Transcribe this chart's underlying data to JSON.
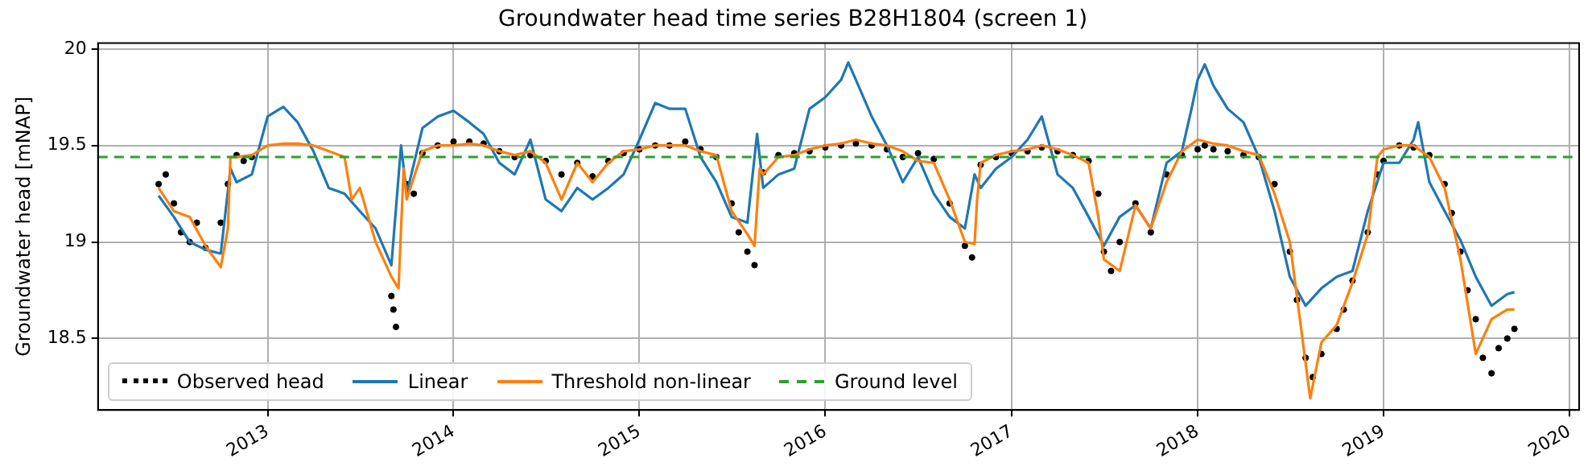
{
  "chart_data": {
    "type": "line",
    "title": "Groundwater head time series B28H1804 (screen 1)",
    "ylabel": "Groundwater head [mNAP]",
    "xlim": [
      "2012-02-03",
      "2020-01-20"
    ],
    "xticks": [
      "2013",
      "2014",
      "2015",
      "2016",
      "2017",
      "2018",
      "2019",
      "2020"
    ],
    "ylim": [
      18.13,
      20.03
    ],
    "yticks": [
      18.5,
      19.0,
      19.5,
      20.0
    ],
    "grid": true,
    "legend": "bottom left",
    "ref_lines": [
      {
        "axis": "y",
        "value": 19.44,
        "label": "Ground level",
        "color": "#2ca02c",
        "line_style": "dashed"
      }
    ],
    "series": [
      {
        "name": "Observed head",
        "type": "scatter",
        "marker": "circle",
        "color": "#000000",
        "x": [
          "2012-06-01",
          "2012-06-15",
          "2012-07-01",
          "2012-07-15",
          "2012-08-01",
          "2012-08-15",
          "2012-09-01",
          "2012-10-01",
          "2012-10-15",
          "2012-11-01",
          "2012-11-15",
          "2012-12-01",
          "2013-09-01",
          "2013-09-05",
          "2013-09-10",
          "2013-10-01",
          "2013-10-15",
          "2013-11-01",
          "2013-12-01",
          "2014-01-01",
          "2014-02-01",
          "2014-03-01",
          "2014-04-01",
          "2014-05-01",
          "2014-06-01",
          "2014-07-01",
          "2014-08-01",
          "2014-09-01",
          "2014-10-01",
          "2014-11-01",
          "2014-12-01",
          "2015-01-01",
          "2015-02-01",
          "2015-03-01",
          "2015-04-01",
          "2015-05-01",
          "2015-06-01",
          "2015-07-01",
          "2015-07-15",
          "2015-08-01",
          "2015-08-15",
          "2015-09-01",
          "2015-10-01",
          "2015-11-01",
          "2015-12-01",
          "2016-01-01",
          "2016-02-01",
          "2016-03-01",
          "2016-04-01",
          "2016-05-01",
          "2016-06-01",
          "2016-07-01",
          "2016-08-01",
          "2016-09-01",
          "2016-10-01",
          "2016-10-15",
          "2016-11-01",
          "2016-12-01",
          "2017-01-01",
          "2017-02-01",
          "2017-03-01",
          "2017-04-01",
          "2017-05-01",
          "2017-06-01",
          "2017-06-20",
          "2017-07-01",
          "2017-07-15",
          "2017-08-01",
          "2017-09-01",
          "2017-10-01",
          "2017-11-01",
          "2017-12-01",
          "2018-01-01",
          "2018-01-15",
          "2018-02-01",
          "2018-03-01",
          "2018-04-01",
          "2018-05-01",
          "2018-06-01",
          "2018-07-01",
          "2018-07-15",
          "2018-08-01",
          "2018-08-15",
          "2018-09-01",
          "2018-10-01",
          "2018-10-15",
          "2018-11-01",
          "2018-12-01",
          "2018-12-20",
          "2019-01-01",
          "2019-02-01",
          "2019-03-01",
          "2019-04-01",
          "2019-05-01",
          "2019-05-15",
          "2019-06-01",
          "2019-06-15",
          "2019-07-01",
          "2019-07-15",
          "2019-08-01",
          "2019-08-15",
          "2019-09-01",
          "2019-09-15"
        ],
        "values": [
          19.3,
          19.35,
          19.2,
          19.05,
          19.0,
          19.1,
          18.97,
          19.1,
          19.3,
          19.45,
          19.42,
          19.44,
          18.72,
          18.65,
          18.56,
          19.3,
          19.25,
          19.46,
          19.5,
          19.52,
          19.52,
          19.51,
          19.47,
          19.44,
          19.45,
          19.42,
          19.35,
          19.41,
          19.34,
          19.42,
          19.46,
          19.48,
          19.5,
          19.5,
          19.52,
          19.48,
          19.44,
          19.2,
          19.05,
          18.95,
          18.88,
          19.36,
          19.45,
          19.46,
          19.47,
          19.49,
          19.5,
          19.51,
          19.5,
          19.48,
          19.44,
          19.46,
          19.43,
          19.2,
          18.98,
          18.92,
          19.4,
          19.44,
          19.46,
          19.47,
          19.49,
          19.47,
          19.45,
          19.42,
          19.25,
          18.95,
          18.85,
          19.0,
          19.2,
          19.05,
          19.35,
          19.45,
          19.48,
          19.5,
          19.48,
          19.47,
          19.45,
          19.44,
          19.3,
          18.95,
          18.7,
          18.4,
          18.3,
          18.42,
          18.55,
          18.65,
          18.8,
          19.05,
          19.35,
          19.42,
          19.5,
          19.49,
          19.45,
          19.3,
          19.15,
          18.95,
          18.75,
          18.6,
          18.4,
          18.32,
          18.45,
          18.5,
          18.55
        ]
      },
      {
        "name": "Linear",
        "type": "line",
        "color": "#1f77b4",
        "x": [
          "2012-06-01",
          "2012-07-01",
          "2012-08-01",
          "2012-09-01",
          "2012-10-01",
          "2012-10-20",
          "2012-11-01",
          "2012-12-01",
          "2013-01-01",
          "2013-02-01",
          "2013-03-01",
          "2013-04-01",
          "2013-05-01",
          "2013-06-01",
          "2013-07-01",
          "2013-08-01",
          "2013-09-01",
          "2013-09-20",
          "2013-10-01",
          "2013-11-01",
          "2013-12-01",
          "2014-01-01",
          "2014-02-01",
          "2014-03-01",
          "2014-04-01",
          "2014-05-01",
          "2014-06-01",
          "2014-07-01",
          "2014-08-01",
          "2014-09-01",
          "2014-10-01",
          "2014-11-01",
          "2014-12-01",
          "2015-01-01",
          "2015-02-01",
          "2015-03-01",
          "2015-04-01",
          "2015-05-01",
          "2015-06-01",
          "2015-07-01",
          "2015-08-01",
          "2015-08-20",
          "2015-09-01",
          "2015-10-01",
          "2015-11-01",
          "2015-12-01",
          "2016-01-01",
          "2016-02-01",
          "2016-02-15",
          "2016-03-01",
          "2016-04-01",
          "2016-05-01",
          "2016-06-01",
          "2016-07-01",
          "2016-08-01",
          "2016-09-01",
          "2016-10-01",
          "2016-10-20",
          "2016-11-01",
          "2016-12-01",
          "2017-01-01",
          "2017-02-01",
          "2017-03-01",
          "2017-04-01",
          "2017-05-01",
          "2017-06-01",
          "2017-07-01",
          "2017-08-01",
          "2017-09-01",
          "2017-10-01",
          "2017-11-01",
          "2017-12-01",
          "2017-12-20",
          "2018-01-01",
          "2018-01-15",
          "2018-02-01",
          "2018-03-01",
          "2018-04-01",
          "2018-05-01",
          "2018-06-01",
          "2018-07-01",
          "2018-08-01",
          "2018-09-01",
          "2018-10-01",
          "2018-11-01",
          "2018-12-01",
          "2019-01-01",
          "2019-02-01",
          "2019-03-01",
          "2019-03-10",
          "2019-04-01",
          "2019-05-01",
          "2019-06-01",
          "2019-07-01",
          "2019-08-01",
          "2019-09-01",
          "2019-09-15"
        ],
        "values": [
          19.24,
          19.13,
          19.0,
          18.96,
          18.94,
          19.38,
          19.31,
          19.35,
          19.65,
          19.7,
          19.62,
          19.47,
          19.28,
          19.25,
          19.16,
          19.07,
          18.88,
          19.5,
          19.25,
          19.59,
          19.65,
          19.68,
          19.62,
          19.56,
          19.41,
          19.35,
          19.53,
          19.22,
          19.16,
          19.28,
          19.22,
          19.28,
          19.35,
          19.53,
          19.72,
          19.69,
          19.69,
          19.44,
          19.31,
          19.13,
          19.1,
          19.56,
          19.28,
          19.35,
          19.38,
          19.69,
          19.75,
          19.84,
          19.93,
          19.84,
          19.65,
          19.5,
          19.31,
          19.44,
          19.25,
          19.13,
          19.07,
          19.35,
          19.28,
          19.38,
          19.44,
          19.53,
          19.65,
          19.35,
          19.28,
          19.13,
          18.98,
          19.13,
          19.19,
          19.07,
          19.41,
          19.47,
          19.69,
          19.84,
          19.92,
          19.81,
          19.69,
          19.62,
          19.44,
          19.16,
          18.82,
          18.67,
          18.76,
          18.82,
          18.85,
          19.16,
          19.41,
          19.41,
          19.53,
          19.62,
          19.31,
          19.16,
          19.01,
          18.82,
          18.67,
          18.73,
          18.74
        ]
      },
      {
        "name": "Threshold non-linear",
        "type": "line",
        "color": "#ff7f0e",
        "x": [
          "2012-06-01",
          "2012-07-01",
          "2012-08-01",
          "2012-09-01",
          "2012-10-01",
          "2012-10-15",
          "2012-10-20",
          "2012-11-01",
          "2012-12-01",
          "2013-01-01",
          "2013-02-01",
          "2013-03-01",
          "2013-04-01",
          "2013-05-01",
          "2013-06-01",
          "2013-06-15",
          "2013-07-01",
          "2013-08-01",
          "2013-09-01",
          "2013-09-15",
          "2013-09-25",
          "2013-10-01",
          "2013-11-01",
          "2013-12-01",
          "2014-01-01",
          "2014-02-01",
          "2014-03-01",
          "2014-04-01",
          "2014-05-01",
          "2014-06-01",
          "2014-07-01",
          "2014-08-01",
          "2014-09-01",
          "2014-10-01",
          "2014-11-01",
          "2014-12-01",
          "2015-01-01",
          "2015-02-01",
          "2015-03-01",
          "2015-04-01",
          "2015-05-01",
          "2015-06-01",
          "2015-07-01",
          "2015-08-01",
          "2015-08-15",
          "2015-08-25",
          "2015-09-01",
          "2015-10-01",
          "2015-11-01",
          "2015-12-01",
          "2016-01-01",
          "2016-02-01",
          "2016-03-01",
          "2016-04-01",
          "2016-05-01",
          "2016-06-01",
          "2016-07-01",
          "2016-08-01",
          "2016-09-01",
          "2016-10-01",
          "2016-10-20",
          "2016-10-25",
          "2016-11-01",
          "2016-12-01",
          "2017-01-01",
          "2017-02-01",
          "2017-03-01",
          "2017-04-01",
          "2017-05-01",
          "2017-06-01",
          "2017-06-20",
          "2017-07-01",
          "2017-08-01",
          "2017-09-01",
          "2017-10-01",
          "2017-11-01",
          "2017-12-01",
          "2018-01-01",
          "2018-02-01",
          "2018-03-01",
          "2018-04-01",
          "2018-05-01",
          "2018-06-01",
          "2018-07-01",
          "2018-08-10",
          "2018-09-01",
          "2018-10-01",
          "2018-11-01",
          "2018-12-01",
          "2018-12-20",
          "2019-01-01",
          "2019-02-01",
          "2019-03-01",
          "2019-04-01",
          "2019-05-01",
          "2019-06-01",
          "2019-07-01",
          "2019-08-01",
          "2019-09-01",
          "2019-09-15"
        ],
        "values": [
          19.28,
          19.16,
          19.13,
          18.98,
          18.87,
          19.07,
          19.44,
          19.44,
          19.45,
          19.5,
          19.51,
          19.51,
          19.5,
          19.47,
          19.44,
          19.22,
          19.28,
          19.0,
          18.82,
          18.76,
          19.38,
          19.22,
          19.47,
          19.5,
          19.5,
          19.51,
          19.5,
          19.47,
          19.45,
          19.47,
          19.41,
          19.22,
          19.41,
          19.31,
          19.41,
          19.47,
          19.48,
          19.5,
          19.5,
          19.5,
          19.47,
          19.45,
          19.16,
          19.04,
          18.98,
          19.38,
          19.35,
          19.44,
          19.45,
          19.48,
          19.5,
          19.51,
          19.53,
          19.51,
          19.5,
          19.47,
          19.42,
          19.41,
          19.22,
          19.0,
          18.99,
          19.22,
          19.41,
          19.45,
          19.47,
          19.48,
          19.5,
          19.48,
          19.45,
          19.41,
          19.13,
          18.91,
          18.85,
          19.19,
          19.07,
          19.31,
          19.47,
          19.53,
          19.51,
          19.5,
          19.47,
          19.45,
          19.25,
          19.0,
          18.19,
          18.48,
          18.57,
          18.79,
          19.04,
          19.44,
          19.48,
          19.5,
          19.5,
          19.44,
          19.28,
          18.91,
          18.42,
          18.6,
          18.65,
          18.65
        ]
      }
    ]
  }
}
